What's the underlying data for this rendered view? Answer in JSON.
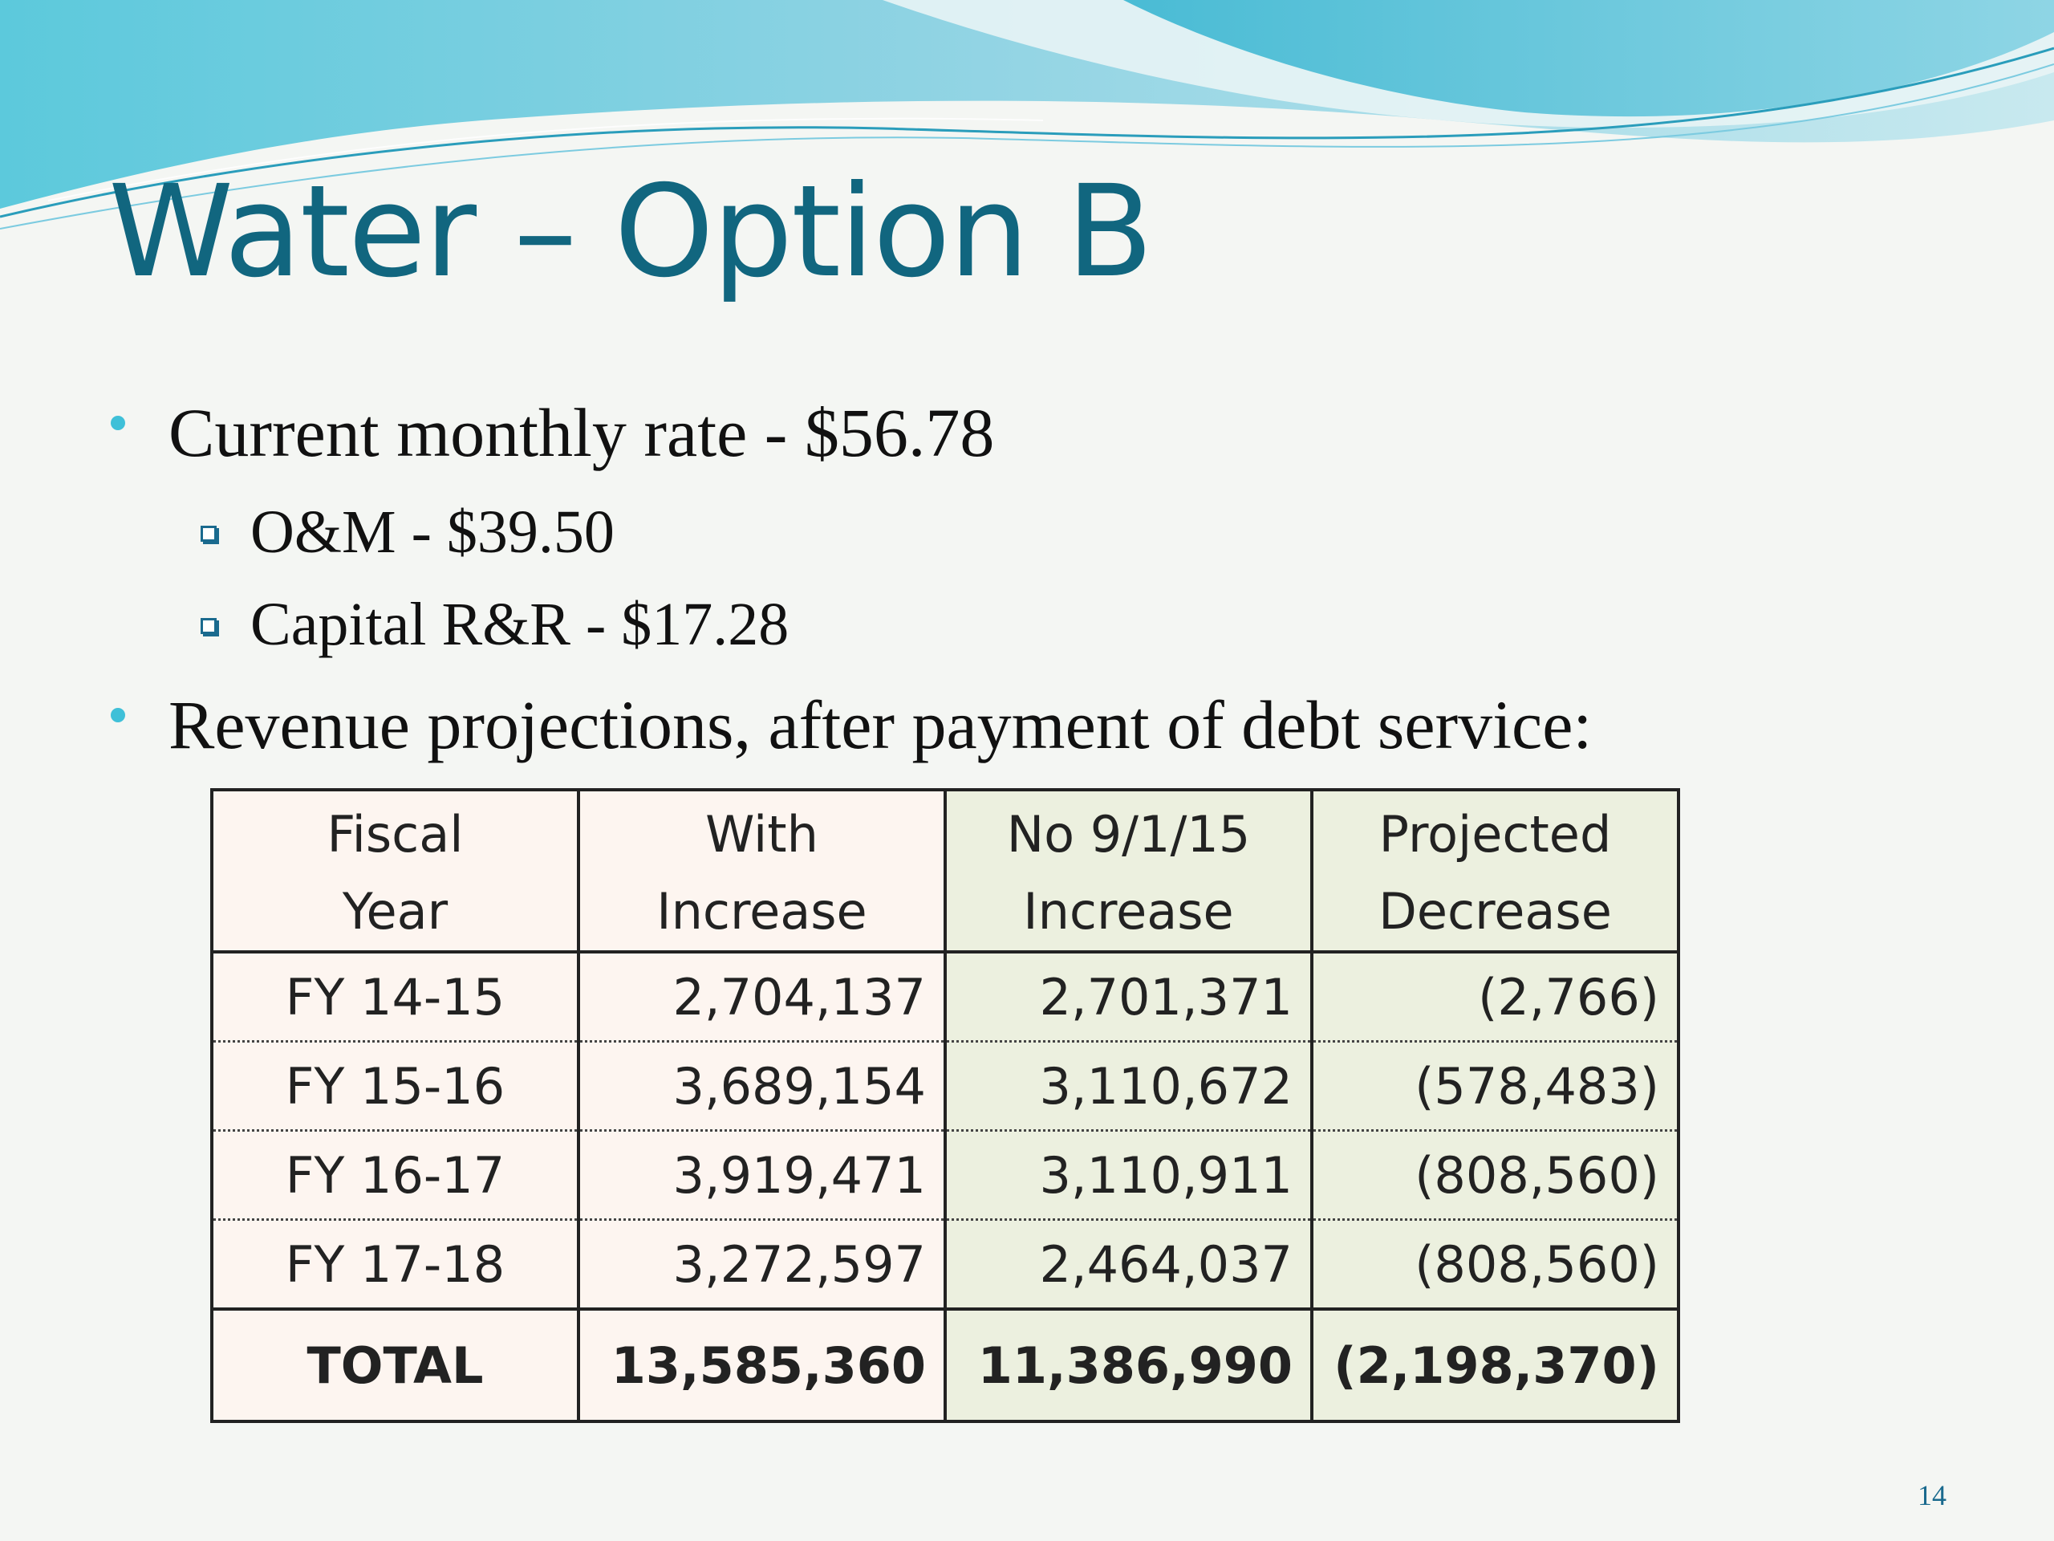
{
  "slide": {
    "title": "Water – Option B",
    "page_number": "14",
    "accent_color": "#11667f"
  },
  "bullets": [
    {
      "text": "Current monthly rate - $56.78",
      "sub": [
        {
          "text": "O&M - $39.50"
        },
        {
          "text": "Capital R&R - $17.28"
        }
      ]
    },
    {
      "text": "Revenue projections, after payment of debt service:"
    }
  ],
  "table": {
    "headers": [
      {
        "line1": "Fiscal",
        "line2": "Year"
      },
      {
        "line1": "With",
        "line2": "Increase"
      },
      {
        "line1": "No 9/1/15",
        "line2": "Increase"
      },
      {
        "line1": "Projected",
        "line2": "Decrease"
      }
    ],
    "rows": [
      {
        "year": "FY 14-15",
        "with_increase": "2,704,137",
        "no_increase": "2,701,371",
        "decrease": "(2,766)"
      },
      {
        "year": "FY 15-16",
        "with_increase": "3,689,154",
        "no_increase": "3,110,672",
        "decrease": "(578,483)"
      },
      {
        "year": "FY 16-17",
        "with_increase": "3,919,471",
        "no_increase": "3,110,911",
        "decrease": "(808,560)"
      },
      {
        "year": "FY 17-18",
        "with_increase": "3,272,597",
        "no_increase": "2,464,037",
        "decrease": "(808,560)"
      }
    ],
    "total": {
      "label": "TOTAL",
      "with_increase": "13,585,360",
      "no_increase": "11,386,990",
      "decrease": "(2,198,370)"
    }
  }
}
